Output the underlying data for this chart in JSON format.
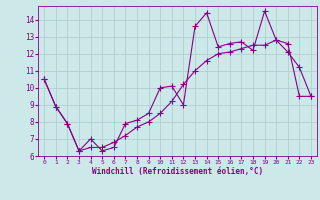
{
  "xlabel": "Windchill (Refroidissement éolien,°C)",
  "bg_color": "#cce8e8",
  "grid_color": "#aacccc",
  "line_color": "#880088",
  "line1_x": [
    0,
    1,
    2,
    3,
    4,
    5,
    6,
    7,
    8,
    9,
    10,
    11,
    12,
    13,
    14,
    15,
    16,
    17,
    18,
    19,
    20,
    21,
    22,
    23
  ],
  "line1_y": [
    10.5,
    8.9,
    7.9,
    6.3,
    7.0,
    6.3,
    6.5,
    7.9,
    8.1,
    8.5,
    10.0,
    10.1,
    9.0,
    13.6,
    14.4,
    12.4,
    12.6,
    12.7,
    12.2,
    14.5,
    12.8,
    12.1,
    11.2,
    9.5
  ],
  "line2_x": [
    0,
    1,
    2,
    3,
    4,
    5,
    6,
    7,
    8,
    9,
    10,
    11,
    12,
    13,
    14,
    15,
    16,
    17,
    18,
    19,
    20,
    21,
    22,
    23
  ],
  "line2_y": [
    10.5,
    8.9,
    7.9,
    6.3,
    6.5,
    6.5,
    6.8,
    7.2,
    7.7,
    8.0,
    8.5,
    9.2,
    10.2,
    11.0,
    11.6,
    12.0,
    12.1,
    12.3,
    12.5,
    12.5,
    12.8,
    12.6,
    9.5,
    9.5
  ],
  "xlim": [
    -0.5,
    23.5
  ],
  "ylim": [
    6.0,
    14.8
  ],
  "yticks": [
    6,
    7,
    8,
    9,
    10,
    11,
    12,
    13,
    14
  ],
  "xticks": [
    0,
    1,
    2,
    3,
    4,
    5,
    6,
    7,
    8,
    9,
    10,
    11,
    12,
    13,
    14,
    15,
    16,
    17,
    18,
    19,
    20,
    21,
    22,
    23
  ],
  "marker": "+",
  "markersize": 4,
  "linewidth": 0.8
}
